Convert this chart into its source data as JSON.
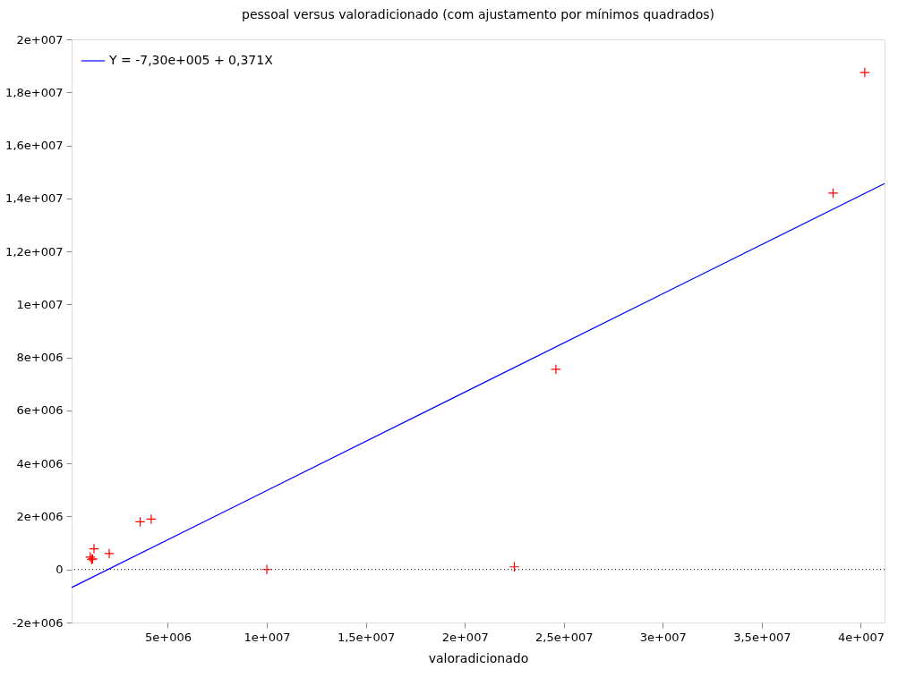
{
  "chart_data": {
    "type": "scatter",
    "title": "pessoal versus valoradicionado (com ajustamento por mínimos quadrados)",
    "xlabel": "valoradicionado",
    "series": [
      {
        "color": "#ff0000",
        "x": [
          40200000,
          38600000,
          24600000,
          22500000,
          10000000,
          3600000,
          4160000,
          2040000,
          1270000,
          1080000,
          1150000,
          1200000
        ],
        "values": [
          18750000,
          14200000,
          7550000,
          100000,
          0,
          1800000,
          1900000,
          600000,
          780000,
          470000,
          370000,
          400000
        ]
      },
      {
        "type": "line",
        "name": "Y = -7,30e+005 + 0,371X",
        "color": "#0000ff",
        "line_style": "solid",
        "marker": "none",
        "x": [
          140000,
          41200000
        ],
        "values": [
          -680000,
          14560000
        ]
      }
    ],
    "xlim": [
      140000,
      41200000
    ],
    "ylim": [
      -2000000,
      20000000
    ],
    "xticks": [
      {
        "value": 5000000,
        "label": "5e+006"
      },
      {
        "value": 10000000,
        "label": "1e+007"
      },
      {
        "value": 15000000,
        "label": "1,5e+007"
      },
      {
        "value": 20000000,
        "label": "2e+007"
      },
      {
        "value": 25000000,
        "label": "2,5e+007"
      },
      {
        "value": 30000000,
        "label": "3e+007"
      },
      {
        "value": 35000000,
        "label": "3,5e+007"
      },
      {
        "value": 40000000,
        "label": "4e+007"
      }
    ],
    "yticks": [
      {
        "value": -2000000,
        "label": "-2e+006"
      },
      {
        "value": 0,
        "label": "0"
      },
      {
        "value": 2000000,
        "label": "2e+006"
      },
      {
        "value": 4000000,
        "label": "4e+006"
      },
      {
        "value": 6000000,
        "label": "6e+006"
      },
      {
        "value": 8000000,
        "label": "8e+006"
      },
      {
        "value": 10000000,
        "label": "1e+007"
      },
      {
        "value": 12000000,
        "label": "1,2e+007"
      },
      {
        "value": 14000000,
        "label": "1,4e+007"
      },
      {
        "value": 16000000,
        "label": "1,6e+007"
      },
      {
        "value": 18000000,
        "label": "1,8e+007"
      },
      {
        "value": 20000000,
        "label": "2e+007"
      }
    ],
    "ref_lines": [
      {
        "axis": "y",
        "value": 0,
        "color": "#000000",
        "line_style": "dotted"
      }
    ],
    "legend": "top left",
    "grid": false,
    "marker": "cross"
  }
}
